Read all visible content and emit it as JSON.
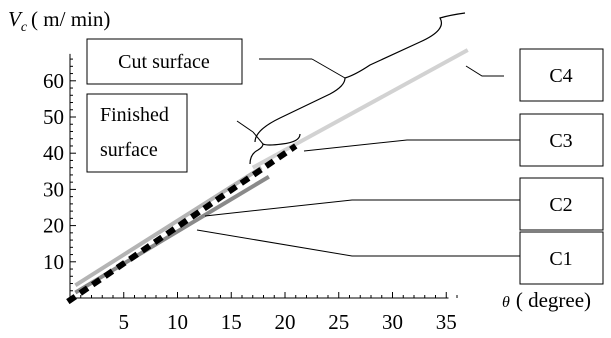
{
  "chart_data": {
    "type": "line",
    "ylabel": "V_c (m/min)",
    "ylabel_parts": {
      "symbol": "V",
      "subscript": "c",
      "unit": "( m/ min)"
    },
    "xlabel": "θ (degree)",
    "xlabel_parts": {
      "symbol": "θ",
      "unit": "( degree)"
    },
    "xlim": [
      -0.5,
      38
    ],
    "ylim": [
      0,
      68
    ],
    "x_ticks": [
      5,
      10,
      15,
      20,
      25,
      30,
      35
    ],
    "y_ticks": [
      10,
      20,
      30,
      40,
      50,
      60
    ],
    "grid": false,
    "series": [
      {
        "name": "C1",
        "color": "#8a8a8a",
        "style": "solid",
        "x": [
          0.5,
          18.5
        ],
        "y": [
          1.5,
          33.5
        ]
      },
      {
        "name": "C2",
        "color": "#b4b4b4",
        "style": "solid",
        "x": [
          0.5,
          17.8
        ],
        "y": [
          3.5,
          36.0
        ]
      },
      {
        "name": "C3",
        "color": "#000000",
        "style": "dashed",
        "x": [
          -0.2,
          21.0
        ],
        "y": [
          -1.0,
          42.0
        ]
      },
      {
        "name": "C4",
        "color": "#d2d2d2",
        "style": "solid",
        "x": [
          17.0,
          37.0
        ],
        "y": [
          36.0,
          68.5
        ]
      }
    ],
    "annotations": [
      {
        "id": "cut_surface",
        "text": "Cut surface"
      },
      {
        "id": "finished_surface",
        "lines": [
          "Finished",
          "surface"
        ]
      }
    ],
    "legend_boxes": [
      {
        "label": "C4"
      },
      {
        "label": "C3"
      },
      {
        "label": "C2"
      },
      {
        "label": "C1"
      }
    ]
  }
}
